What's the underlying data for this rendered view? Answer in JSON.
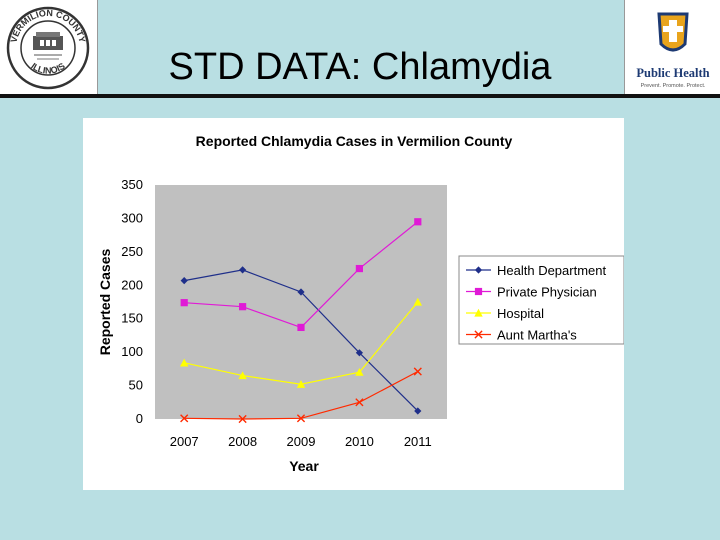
{
  "slide": {
    "title": "STD DATA: Chlamydia"
  },
  "logos": {
    "left": {
      "ring_top": "VERMILION COUNTY",
      "ring_bottom": "ILLINOIS",
      "icon": "county-seal-icon"
    },
    "right": {
      "text": "Public Health",
      "tagline": "Prevent. Promote. Protect.",
      "icon": "public-health-shield-icon",
      "color": "#1d3a73"
    }
  },
  "chart_data": {
    "type": "line",
    "title": "Reported Chlamydia Cases in Vermilion County",
    "xlabel": "Year",
    "ylabel": "Reported Cases",
    "categories": [
      "2007",
      "2008",
      "2009",
      "2010",
      "2011"
    ],
    "ylim": [
      0,
      350
    ],
    "yticks": [
      0,
      50,
      100,
      150,
      200,
      250,
      300,
      350
    ],
    "grid": false,
    "legend": "right",
    "plot_background": "#c0c0c0",
    "series": [
      {
        "name": "Health Department",
        "values": [
          207,
          223,
          190,
          99,
          12
        ],
        "color": "#1f2f8a",
        "marker": "diamond"
      },
      {
        "name": "Private Physician",
        "values": [
          174,
          168,
          137,
          225,
          295
        ],
        "color": "#e01ad6",
        "marker": "square"
      },
      {
        "name": "Hospital",
        "values": [
          84,
          65,
          52,
          70,
          175
        ],
        "color": "#ffff00",
        "marker": "triangle"
      },
      {
        "name": "Aunt Martha's",
        "values": [
          1,
          0,
          1,
          25,
          71
        ],
        "color": "#ff2a00",
        "marker": "x"
      }
    ]
  }
}
